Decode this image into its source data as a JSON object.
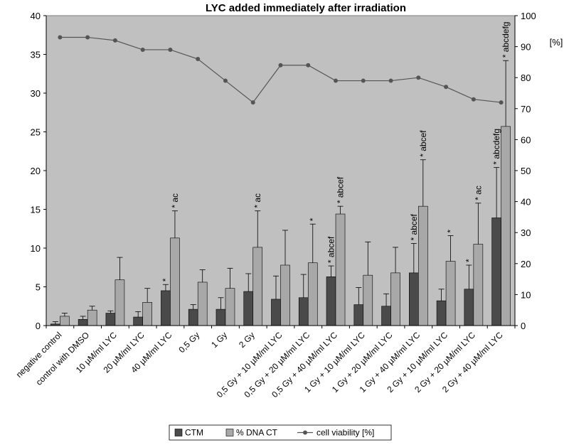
{
  "chart_data": {
    "type": "bar",
    "title": "LYC added immediately after irradiation",
    "xlabel": "",
    "ylabel": "",
    "y2label": "[%]",
    "ylim": [
      0,
      40
    ],
    "y2lim": [
      0,
      100
    ],
    "yticks": [
      "0",
      "5",
      "10",
      "15",
      "20",
      "25",
      "30",
      "35",
      "40"
    ],
    "y2ticks": [
      "0",
      "10",
      "20",
      "30",
      "40",
      "50",
      "60",
      "70",
      "80",
      "90",
      "100"
    ],
    "grid": false,
    "legend_position": "bottom",
    "background_color": "#c0c0c0",
    "categories": [
      "negative control",
      "control with DMSO",
      "10 µM/ml LYC",
      "20 µM/ml  LYC",
      "40 µM/ml  LYC",
      "0,5 Gy",
      "1 Gy",
      "2 Gy",
      "0,5 Gy + 10 µM/ml  LYC",
      "0,5 Gy + 20 µM/ml  LYC",
      "0,5 Gy + 40 µM/ml  LYC",
      "1 Gy + 10 µM/ml  LYC",
      "1 Gy + 20 µM/ml  LYC",
      "1 Gy + 40 µM/ml  LYC",
      "2 Gy + 10 µM/ml  LYC",
      "2 Gy + 20 µM/ml  LYC",
      "2 Gy + 40 µM/ml  LYC"
    ],
    "series": [
      {
        "name": "CTM",
        "type": "bar",
        "axis": "left",
        "color": "#4a4a4a",
        "values": [
          0.2,
          0.8,
          1.6,
          1.1,
          4.5,
          2.1,
          2.1,
          4.4,
          3.4,
          3.6,
          6.3,
          2.7,
          2.5,
          6.8,
          3.2,
          4.7,
          13.9
        ],
        "errors": [
          0.3,
          0.4,
          0.3,
          0.7,
          0.8,
          0.6,
          1.5,
          2.3,
          3.0,
          3.0,
          1.4,
          2.2,
          1.6,
          3.8,
          1.5,
          3.1,
          6.5
        ],
        "annotations": [
          "",
          "",
          "",
          "",
          "*",
          "",
          "",
          "",
          "",
          "",
          "* abcef",
          "",
          "",
          "* abcef",
          "",
          "*",
          "* abcdefg"
        ]
      },
      {
        "name": "% DNA CT",
        "type": "bar",
        "axis": "left",
        "color": "#a8a8a8",
        "values": [
          1.2,
          2.0,
          5.9,
          3.0,
          11.3,
          5.6,
          4.8,
          10.1,
          7.8,
          8.1,
          14.4,
          6.5,
          6.8,
          15.4,
          8.3,
          10.5,
          25.7
        ],
        "errors": [
          0.4,
          0.5,
          2.9,
          1.8,
          3.5,
          1.6,
          2.6,
          4.7,
          4.5,
          5.0,
          1.0,
          4.3,
          3.3,
          6.0,
          3.3,
          5.3,
          8.5
        ],
        "annotations": [
          "",
          "",
          "",
          "",
          "* ac",
          "",
          "",
          "* ac",
          "",
          "*",
          "* abcef",
          "",
          "",
          "* abcef",
          "*",
          "* ac",
          "* abcdefg"
        ]
      },
      {
        "name": "cell viability [%]",
        "type": "line",
        "axis": "right",
        "color": "#555555",
        "values": [
          93,
          93,
          92,
          89,
          89,
          86,
          79,
          72,
          84,
          84,
          79,
          79,
          79,
          80,
          77,
          73,
          72
        ]
      }
    ]
  }
}
